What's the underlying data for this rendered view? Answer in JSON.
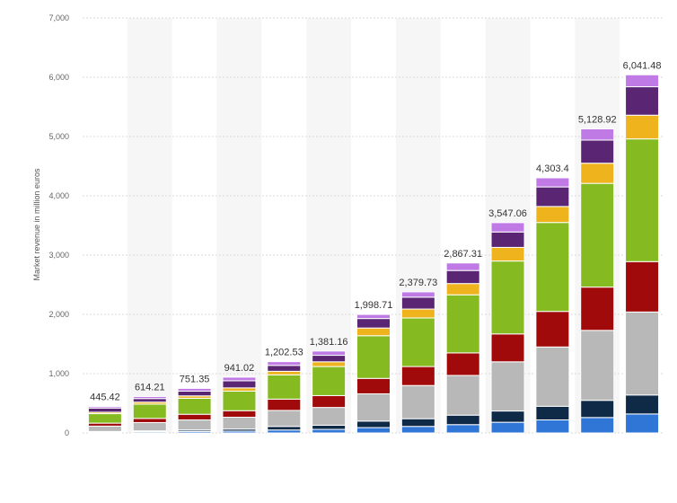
{
  "chart_data": {
    "type": "bar",
    "stacked": true,
    "ylabel": "Market revenue in million euros",
    "ylim": [
      0,
      7000
    ],
    "yticks": [
      0,
      1000,
      2000,
      3000,
      4000,
      5000,
      6000,
      7000
    ],
    "ytick_labels": [
      "0",
      "1,000",
      "2,000",
      "3,000",
      "4,000",
      "5,000",
      "6,000",
      "7,000"
    ],
    "grid": true,
    "categories": [
      "",
      "",
      "",
      "",
      "",
      "",
      "",
      "",
      "",
      "",
      "",
      "",
      ""
    ],
    "totals": [
      445.42,
      614.21,
      751.35,
      941.02,
      1202.53,
      1381.16,
      1998.71,
      2379.73,
      2867.31,
      3547.06,
      4303.4,
      5128.92,
      6041.48
    ],
    "total_labels": [
      "445.42",
      "614.21",
      "751.35",
      "941.02",
      "1,202.53",
      "1,381.16",
      "1,998.71",
      "2,379.73",
      "2,867.31",
      "3,547.06",
      "4,303.4",
      "5,128.92",
      "6,041.48"
    ],
    "series": [
      {
        "color": "#2f76d6",
        "values": [
          15,
          20,
          25,
          30,
          50,
          60,
          90,
          110,
          140,
          180,
          220,
          260,
          320
        ]
      },
      {
        "color": "#0e2a47",
        "values": [
          10,
          15,
          25,
          35,
          60,
          70,
          110,
          130,
          160,
          190,
          230,
          290,
          320
        ]
      },
      {
        "color": "#b8b8b8",
        "values": [
          90,
          140,
          170,
          200,
          270,
          300,
          460,
          560,
          670,
          830,
          1000,
          1180,
          1400
        ]
      },
      {
        "color": "#a10a0a",
        "values": [
          50,
          70,
          95,
          110,
          190,
          200,
          260,
          320,
          380,
          470,
          600,
          730,
          850
        ]
      },
      {
        "color": "#85bb21",
        "values": [
          160,
          240,
          270,
          330,
          410,
          490,
          720,
          820,
          980,
          1230,
          1500,
          1750,
          2070
        ]
      },
      {
        "color": "#eeb31d",
        "values": [
          25,
          35,
          40,
          55,
          60,
          80,
          130,
          150,
          190,
          230,
          270,
          340,
          400
        ]
      },
      {
        "color": "#5a2673",
        "values": [
          70,
          60,
          80,
          120,
          100,
          110,
          160,
          200,
          220,
          260,
          330,
          390,
          480
        ]
      },
      {
        "color": "#c07ae6",
        "values": [
          25.42,
          34.21,
          46.35,
          61.02,
          62.53,
          71.16,
          68.71,
          89.73,
          127.31,
          157.06,
          153.4,
          188.92,
          201.48
        ]
      }
    ]
  }
}
